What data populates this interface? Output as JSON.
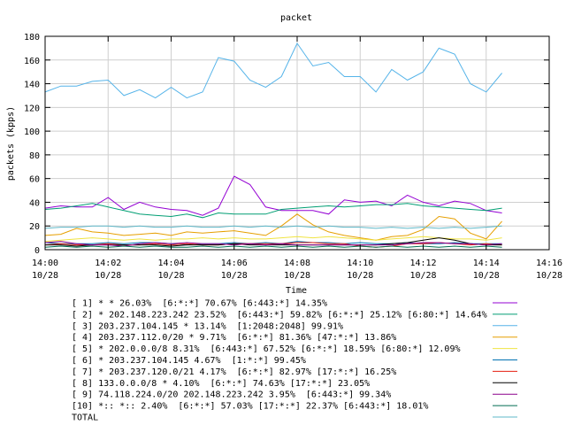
{
  "chart_data": {
    "type": "line",
    "title": "packet",
    "xlabel": "Time",
    "ylabel": "packets (kpps)",
    "ylim": [
      0,
      180
    ],
    "xlim": [
      "14:00",
      "14:16"
    ],
    "yticks": [
      0,
      20,
      40,
      60,
      80,
      100,
      120,
      140,
      160,
      180
    ],
    "xticks": [
      {
        "time": "14:00",
        "date": "10/28"
      },
      {
        "time": "14:02",
        "date": "10/28"
      },
      {
        "time": "14:04",
        "date": "10/28"
      },
      {
        "time": "14:06",
        "date": "10/28"
      },
      {
        "time": "14:08",
        "date": "10/28"
      },
      {
        "time": "14:10",
        "date": "10/28"
      },
      {
        "time": "14:12",
        "date": "10/28"
      },
      {
        "time": "14:14",
        "date": "10/28"
      },
      {
        "time": "14:16",
        "date": "10/28"
      }
    ],
    "grid": true,
    "legend_position": "bottom",
    "x": [
      "14:00:00",
      "14:00:30",
      "14:01:00",
      "14:01:30",
      "14:02:00",
      "14:02:30",
      "14:03:00",
      "14:03:30",
      "14:04:00",
      "14:04:30",
      "14:05:00",
      "14:05:30",
      "14:06:00",
      "14:06:30",
      "14:07:00",
      "14:07:30",
      "14:08:00",
      "14:08:30",
      "14:09:00",
      "14:09:30",
      "14:10:00",
      "14:10:30",
      "14:11:00",
      "14:11:30",
      "14:12:00",
      "14:12:30",
      "14:13:00",
      "14:13:30",
      "14:14:00",
      "14:14:30"
    ],
    "series": [
      {
        "name": "[ 1] * * 26.03%  [6:*:*] 70.67% [6:443:*] 14.35%",
        "color": "#9400d3",
        "values": [
          35,
          37,
          36,
          36,
          44,
          34,
          40,
          36,
          34,
          33,
          29,
          35,
          62,
          55,
          36,
          33,
          33,
          33,
          30,
          42,
          40,
          41,
          37,
          46,
          40,
          37,
          41,
          39,
          33,
          31
        ]
      },
      {
        "name": "[ 2] * 202.148.223.242 23.52%  [6:443:*] 59.82% [6:*:*] 25.12% [6:80:*] 14.64%",
        "color": "#009e73",
        "values": [
          34,
          35,
          37,
          39,
          36,
          33,
          30,
          29,
          28,
          30,
          27,
          31,
          30,
          30,
          30,
          34,
          35,
          36,
          37,
          36,
          37,
          38,
          38,
          39,
          37,
          36,
          35,
          34,
          33,
          35
        ]
      },
      {
        "name": "[ 3] 203.237.104.145 * 13.14%  [1:2048:2048] 99.91%",
        "color": "#56b4e9",
        "values": [
          133,
          138,
          138,
          142,
          143,
          130,
          135,
          128,
          137,
          128,
          133,
          162,
          159,
          143,
          137,
          146,
          174,
          155,
          158,
          146,
          146,
          133,
          152,
          143,
          150,
          170,
          165,
          140,
          133,
          149
        ]
      },
      {
        "name": "[ 4] 203.237.112.0/20 * 9.71%  [6:*:*] 81.36% [47:*:*] 13.86%",
        "color": "#e69f00",
        "values": [
          12,
          13,
          18,
          15,
          14,
          12,
          13,
          14,
          12,
          15,
          14,
          15,
          16,
          14,
          12,
          20,
          30,
          21,
          15,
          12,
          10,
          8,
          11,
          12,
          17,
          28,
          26,
          14,
          9,
          24
        ]
      },
      {
        "name": "[ 5] * 202.0.0.0/8 8.31%  [6:443:*] 67.52% [6:*:*] 18.59% [6:80:*] 12.09%",
        "color": "#f0e442",
        "values": [
          7,
          8,
          9,
          10,
          9,
          8,
          9,
          8,
          9,
          9,
          10,
          9,
          10,
          9,
          9,
          10,
          11,
          10,
          11,
          10,
          9,
          8,
          9,
          10,
          11,
          10,
          9,
          9,
          8,
          10
        ]
      },
      {
        "name": "[ 6] * 203.237.104.145 4.67%  [1:*:*] 99.45%",
        "color": "#0072b2",
        "values": [
          6,
          5,
          5,
          5,
          6,
          5,
          6,
          6,
          5,
          4,
          5,
          5,
          6,
          5,
          6,
          5,
          7,
          6,
          6,
          5,
          6,
          5,
          5,
          6,
          5,
          5,
          6,
          5,
          5,
          5
        ]
      },
      {
        "name": "[ 7] * 203.237.120.0/21 4.17%  [6:*:*] 82.97% [17:*:*] 16.25%",
        "color": "#e51e10",
        "values": [
          4,
          5,
          4,
          4,
          5,
          4,
          4,
          5,
          4,
          5,
          4,
          4,
          5,
          5,
          5,
          5,
          6,
          6,
          5,
          5,
          3,
          2,
          3,
          5,
          5,
          6,
          5,
          4,
          5,
          4
        ]
      },
      {
        "name": "[ 8] 133.0.0.0/8 * 4.10%  [6:*:*] 74.63% [17:*:*] 23.05%",
        "color": "#000000",
        "values": [
          4,
          4,
          3,
          4,
          4,
          4,
          4,
          4,
          3,
          4,
          4,
          4,
          5,
          4,
          4,
          4,
          4,
          4,
          4,
          4,
          4,
          4,
          5,
          6,
          8,
          10,
          8,
          5,
          4,
          4
        ]
      },
      {
        "name": "[ 9] 74.118.224.0/20 202.148.223.242 3.95%  [6:443:*] 99.34%",
        "color": "#8c008c",
        "values": [
          6,
          7,
          5,
          4,
          4,
          3,
          5,
          6,
          5,
          6,
          5,
          5,
          4,
          5,
          4,
          5,
          4,
          4,
          4,
          4,
          4,
          4,
          4,
          5,
          6,
          6,
          5,
          5,
          4,
          5
        ]
      },
      {
        "name": "[10] *:: *:: 2.40%  [6:*:*] 57.03% [17:*:*] 22.37% [6:443:*] 18.01%",
        "color": "#006e50",
        "values": [
          2,
          3,
          2,
          3,
          2,
          3,
          2,
          3,
          2,
          2,
          3,
          2,
          3,
          2,
          3,
          2,
          3,
          2,
          3,
          2,
          3,
          2,
          3,
          2,
          3,
          2,
          3,
          2,
          3,
          2
        ]
      },
      {
        "name": "TOTAL",
        "color": "#5fb8c8",
        "values": [
          18,
          19,
          19,
          20,
          20,
          19,
          20,
          19,
          19,
          20,
          19,
          19,
          20,
          19,
          20,
          19,
          20,
          19,
          20,
          19,
          19,
          18,
          19,
          18,
          19,
          18,
          19,
          18,
          19,
          20
        ]
      }
    ]
  }
}
